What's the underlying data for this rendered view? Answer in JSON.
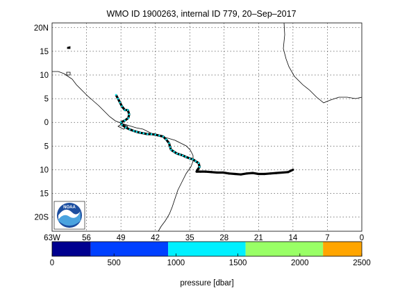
{
  "map": {
    "title": "WMO ID 1900263, internal ID 779, 20–Sep–2017",
    "lon_labels": [
      "63W",
      "56",
      "49",
      "42",
      "35",
      "28",
      "21",
      "14",
      "7",
      "0"
    ],
    "lat_labels": [
      "20N",
      "15",
      "10",
      "5",
      "0",
      "5",
      "10",
      "15",
      "20S"
    ],
    "lon_range": [
      -63,
      0
    ],
    "lat_range": [
      -23,
      21
    ],
    "grid": true,
    "logo_text": "NOAA",
    "logo_position": "bottom-left",
    "track_colors": {
      "path": "#000000",
      "shallow": "#00e5ee"
    }
  },
  "colorbar": {
    "label": "pressure [dbar]",
    "tick_labels": [
      "0",
      "500",
      "1000",
      "1500",
      "2000",
      "2500"
    ],
    "range": [
      0,
      2500
    ],
    "bands": [
      {
        "from": 0,
        "to": 312,
        "color": "#00008f"
      },
      {
        "from": 312,
        "to": 937,
        "color": "#0040ff"
      },
      {
        "from": 937,
        "to": 1562,
        "color": "#00f0ff"
      },
      {
        "from": 1562,
        "to": 2187,
        "color": "#99ff66"
      },
      {
        "from": 2187,
        "to": 2500,
        "color": "#ffa500"
      }
    ]
  },
  "chart_data": {
    "type": "scatter",
    "title": "WMO ID 1900263, internal ID 779, 20–Sep–2017",
    "xlabel": "",
    "ylabel": "",
    "xlim": [
      -63,
      0
    ],
    "ylim": [
      -23,
      21
    ],
    "series": [
      {
        "x": [
          -50.0,
          -49.6,
          -49.2,
          -48.8,
          -48.2,
          -47.6,
          -47.3,
          -47.5,
          -48.2,
          -49.0,
          -48.8,
          -48.0,
          -47.2,
          -46.4,
          -45.8,
          -45.1,
          -44.4,
          -43.6,
          -42.8,
          -42.0,
          -41.2,
          -40.4,
          -39.8,
          -39.2,
          -39.0,
          -38.8,
          -38.2,
          -37.6,
          -37.0,
          -36.4,
          -35.8,
          -35.0,
          -34.4,
          -33.8,
          -33.2,
          -33.0,
          -33.4,
          -33.6,
          -32.8,
          -31.8,
          -30.6,
          -29.4,
          -28.2,
          -27.0,
          -25.8,
          -24.6,
          -23.4,
          -22.2,
          -21.0,
          -19.8,
          -18.6,
          -17.4,
          -16.2,
          -15.0,
          -14.0
        ],
        "y": [
          5.8,
          5.0,
          4.2,
          3.4,
          2.6,
          2.6,
          1.7,
          0.9,
          0.4,
          0.0,
          -0.5,
          -1.1,
          -1.5,
          -1.8,
          -2.0,
          -2.2,
          -2.3,
          -2.5,
          -2.5,
          -2.6,
          -2.8,
          -3.0,
          -3.6,
          -4.4,
          -5.2,
          -5.8,
          -6.2,
          -6.6,
          -6.8,
          -7.0,
          -7.3,
          -7.6,
          -7.8,
          -8.2,
          -8.6,
          -9.4,
          -10.0,
          -10.4,
          -10.4,
          -10.4,
          -10.5,
          -10.6,
          -10.6,
          -10.8,
          -10.9,
          -11.0,
          -10.8,
          -10.7,
          -10.9,
          -10.9,
          -10.8,
          -10.7,
          -10.6,
          -10.5,
          -10.0
        ],
        "pressure": [
          1000,
          1000,
          1000,
          1000,
          1000,
          1000,
          1000,
          1000,
          1000,
          1000,
          1000,
          1000,
          1000,
          1000,
          1000,
          1000,
          1000,
          1000,
          1000,
          1000,
          1000,
          1000,
          1000,
          1000,
          1000,
          1000,
          1000,
          1000,
          1000,
          1000,
          1000,
          1000,
          1000,
          1000,
          1000,
          1000,
          1000,
          1000,
          1000,
          1000,
          1000,
          1000,
          1000,
          1000,
          1000,
          1000,
          1000,
          1000,
          1000,
          1000,
          1000,
          1000,
          1000,
          1000,
          1000
        ]
      }
    ]
  }
}
